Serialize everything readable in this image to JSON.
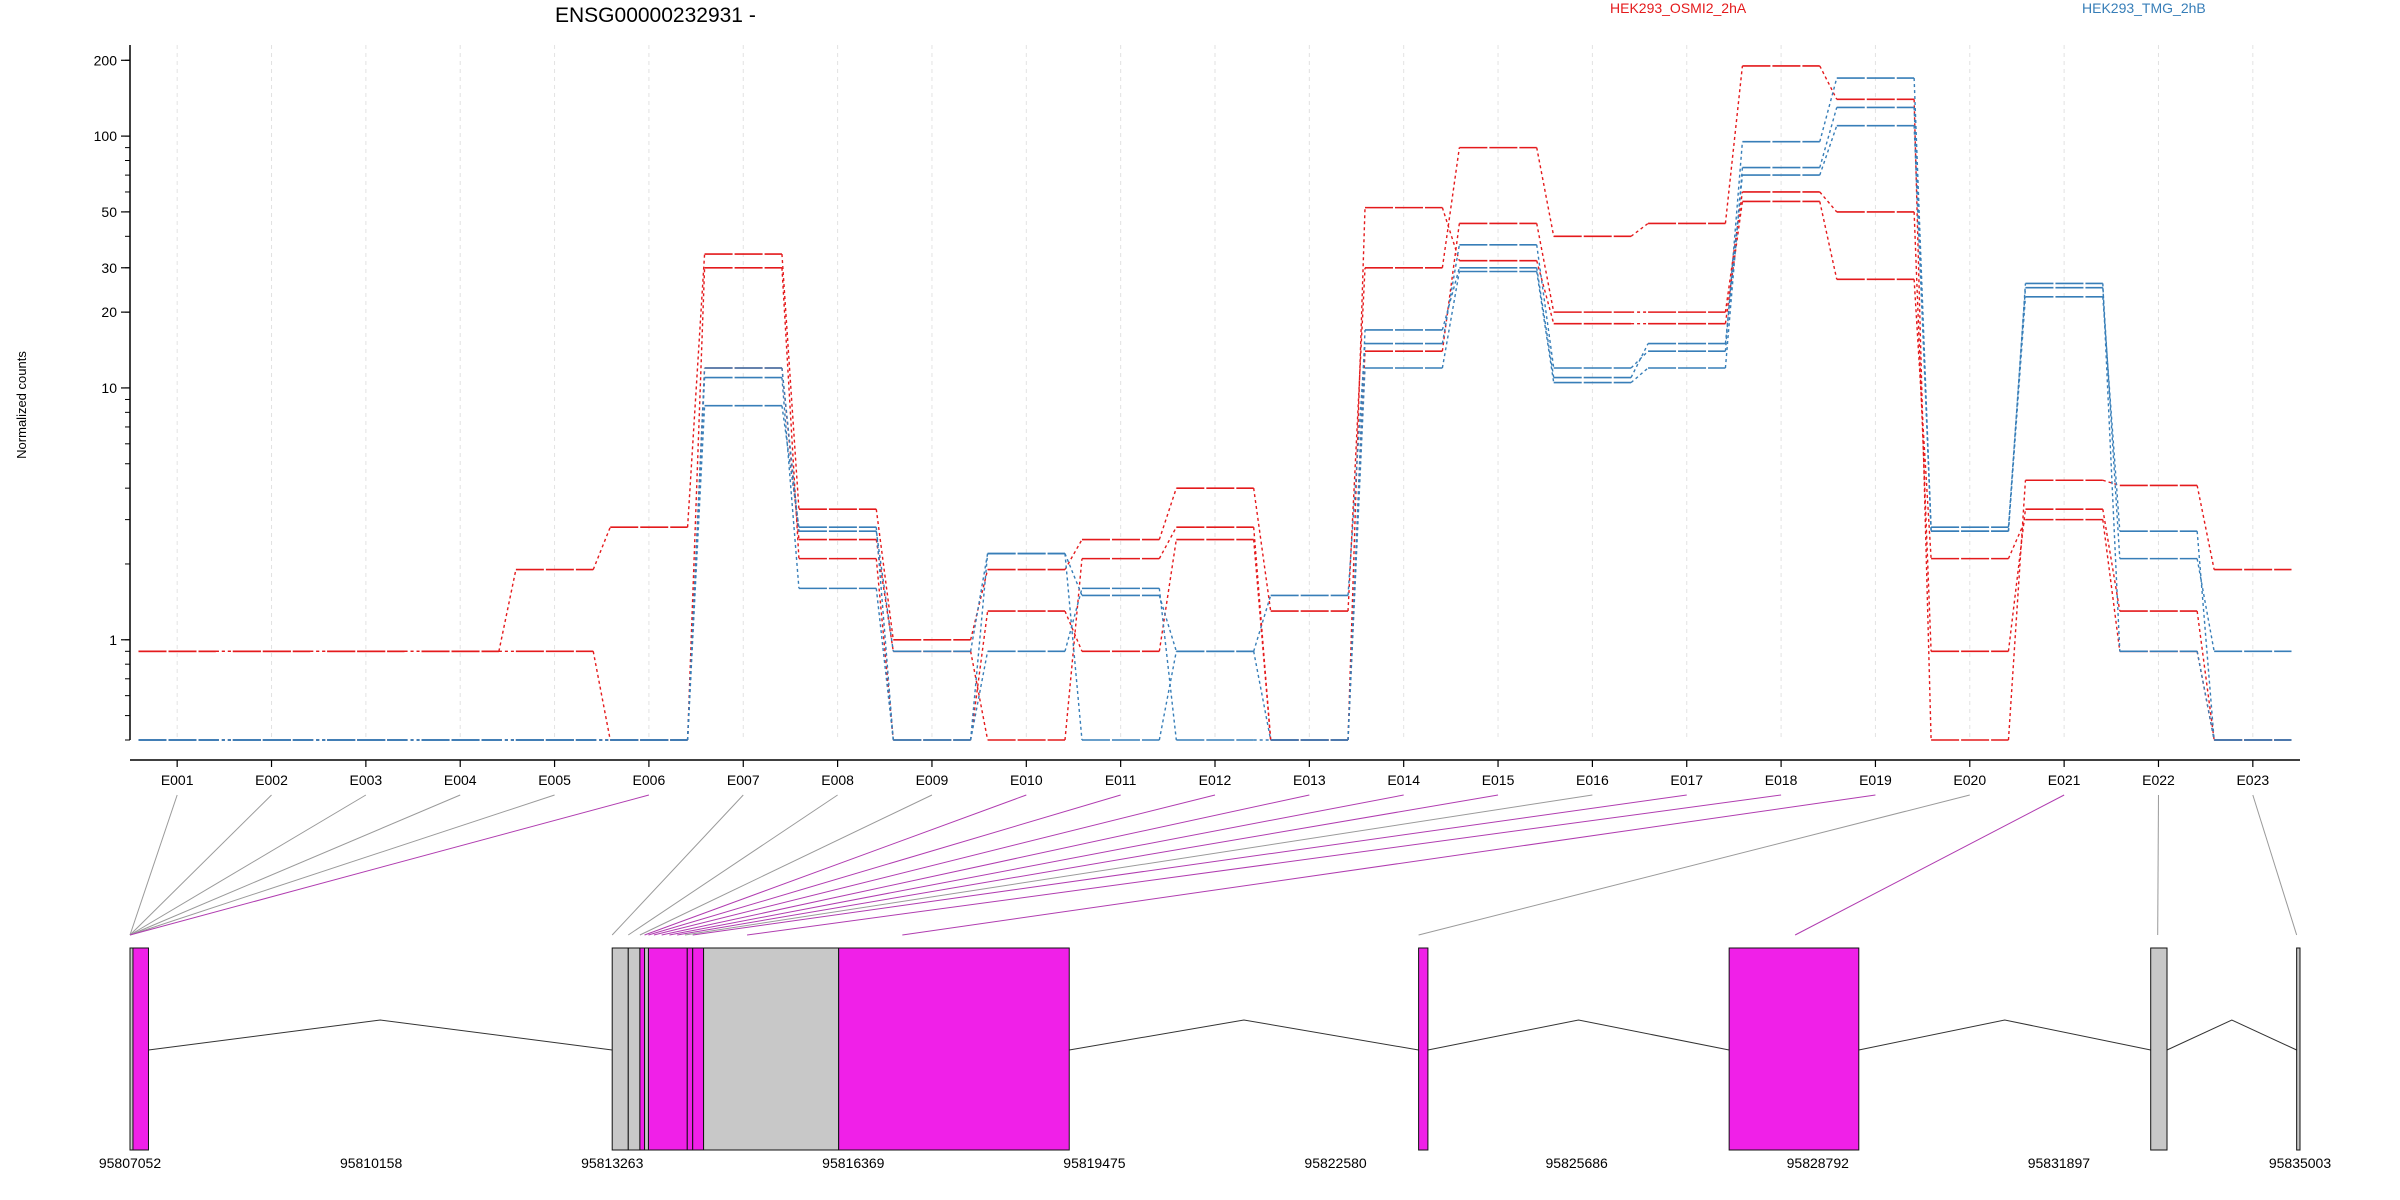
{
  "chart_data": {
    "type": "line",
    "title": "ENSG00000232931 -",
    "ylabel": "Normalized counts",
    "xlabel": "",
    "yscale": "log",
    "ylim": [
      0.4,
      230
    ],
    "yticks": [
      {
        "v": 1,
        "label": "1"
      },
      {
        "v": 10,
        "label": "10"
      },
      {
        "v": 20,
        "label": "20"
      },
      {
        "v": 30,
        "label": "30"
      },
      {
        "v": 50,
        "label": "50"
      },
      {
        "v": 100,
        "label": "100"
      },
      {
        "v": 200,
        "label": "200"
      }
    ],
    "categories": [
      "E001",
      "E002",
      "E003",
      "E004",
      "E005",
      "E006",
      "E007",
      "E008",
      "E009",
      "E010",
      "E011",
      "E012",
      "E013",
      "E014",
      "E015",
      "E016",
      "E017",
      "E018",
      "E019",
      "E020",
      "E021",
      "E022",
      "E023"
    ],
    "legend": [
      {
        "label": "HEK293_OSMI2_2hA",
        "color": "#e41a1c"
      },
      {
        "label": "HEK293_TMG_2hB",
        "color": "#377eb8"
      }
    ],
    "series": [
      {
        "color": "#e41a1c",
        "values": [
          0.9,
          0.9,
          0.9,
          0.9,
          0.9,
          0.4,
          30,
          2.1,
          0.4,
          1.3,
          0.9,
          2.5,
          0.4,
          14,
          45,
          20,
          20,
          60,
          50,
          0.9,
          3.3,
          1.3,
          0.4
        ]
      },
      {
        "color": "#e41a1c",
        "values": [
          0.9,
          0.9,
          0.9,
          0.9,
          1.9,
          2.8,
          34,
          3.3,
          1.0,
          1.9,
          2.5,
          4.0,
          1.3,
          30,
          90,
          40,
          45,
          190,
          140,
          0.4,
          4.3,
          4.1,
          1.9
        ]
      },
      {
        "color": "#e41a1c",
        "values": [
          0.4,
          0.4,
          0.4,
          0.4,
          0.4,
          0.4,
          12,
          2.5,
          0.9,
          0.4,
          2.1,
          2.8,
          0.4,
          52,
          32,
          18,
          18,
          55,
          27,
          2.1,
          3.0,
          0.9,
          0.4
        ]
      },
      {
        "color": "#377eb8",
        "values": [
          0.4,
          0.4,
          0.4,
          0.4,
          0.4,
          0.4,
          11,
          1.6,
          0.4,
          2.2,
          1.5,
          0.9,
          1.5,
          15,
          37,
          12,
          14,
          95,
          170,
          2.7,
          23,
          2.7,
          0.4
        ]
      },
      {
        "color": "#377eb8",
        "values": [
          0.4,
          0.4,
          0.4,
          0.4,
          0.4,
          0.4,
          8.5,
          2.8,
          0.4,
          0.9,
          1.6,
          0.4,
          0.4,
          17,
          30,
          11,
          15,
          70,
          110,
          2.8,
          25,
          2.1,
          0.9
        ]
      },
      {
        "color": "#377eb8",
        "values": [
          0.4,
          0.4,
          0.4,
          0.4,
          0.4,
          0.4,
          12,
          2.7,
          0.9,
          2.2,
          0.4,
          0.9,
          0.4,
          12,
          29,
          10.5,
          12,
          75,
          130,
          2.7,
          26,
          0.9,
          0.4
        ]
      }
    ],
    "exon_colors": [
      "#9a9a9a",
      "#9a9a9a",
      "#9a9a9a",
      "#9a9a9a",
      "#9a9a9a",
      "#b03cb0",
      "#9a9a9a",
      "#9a9a9a",
      "#9a9a9a",
      "#b03cb0",
      "#b03cb0",
      "#b03cb0",
      "#b03cb0",
      "#b03cb0",
      "#b03cb0",
      "#9a9a9a",
      "#b03cb0",
      "#b03cb0",
      "#b03cb0",
      "#9a9a9a",
      "#b03cb0",
      "#9a9a9a",
      "#9a9a9a"
    ],
    "coord_axis": {
      "range": [
        95807052,
        95835003
      ],
      "ticks": [
        "95807052",
        "95810158",
        "95813263",
        "95816369",
        "95819475",
        "95822580",
        "95825686",
        "95828792",
        "95831897",
        "95835003"
      ]
    },
    "gene_features": [
      {
        "start": 95807052,
        "end": 95807090,
        "color": "#c8c8c8"
      },
      {
        "start": 95807090,
        "end": 95807290,
        "color": "#f020e8"
      },
      {
        "start": 95813263,
        "end": 95813470,
        "color": "#c8c8c8"
      },
      {
        "start": 95813470,
        "end": 95813620,
        "color": "#c8c8c8"
      },
      {
        "start": 95813620,
        "end": 95813680,
        "color": "#f020e8"
      },
      {
        "start": 95813680,
        "end": 95813730,
        "color": "#c8c8c8"
      },
      {
        "start": 95813730,
        "end": 95814230,
        "color": "#f020e8"
      },
      {
        "start": 95814230,
        "end": 95814300,
        "color": "#f020e8"
      },
      {
        "start": 95814300,
        "end": 95814440,
        "color": "#f020e8"
      },
      {
        "start": 95814440,
        "end": 95816180,
        "color": "#c8c8c8"
      },
      {
        "start": 95816180,
        "end": 95819150,
        "color": "#f020e8"
      },
      {
        "start": 95823650,
        "end": 95823770,
        "color": "#f020e8"
      },
      {
        "start": 95827650,
        "end": 95829320,
        "color": "#f020e8"
      },
      {
        "start": 95833080,
        "end": 95833290,
        "color": "#c8c8c8"
      },
      {
        "start": 95834960,
        "end": 95835003,
        "color": "#c8c8c8"
      }
    ],
    "introns": [
      [
        95807290,
        95813263
      ],
      [
        95819150,
        95823650
      ],
      [
        95823770,
        95827650
      ],
      [
        95829320,
        95833080
      ],
      [
        95833290,
        95834960
      ]
    ],
    "exon_anchors": [
      95807052,
      95807052,
      95807052,
      95807052,
      95807052,
      95807052,
      95813263,
      95813470,
      95813620,
      95813680,
      95813730,
      95813800,
      95813900,
      95814000,
      95814100,
      95814200,
      95814300,
      95815000,
      95817000,
      95823650,
      95828500,
      95833170,
      95834960
    ],
    "grid": "vertical",
    "legend_position": "top"
  }
}
